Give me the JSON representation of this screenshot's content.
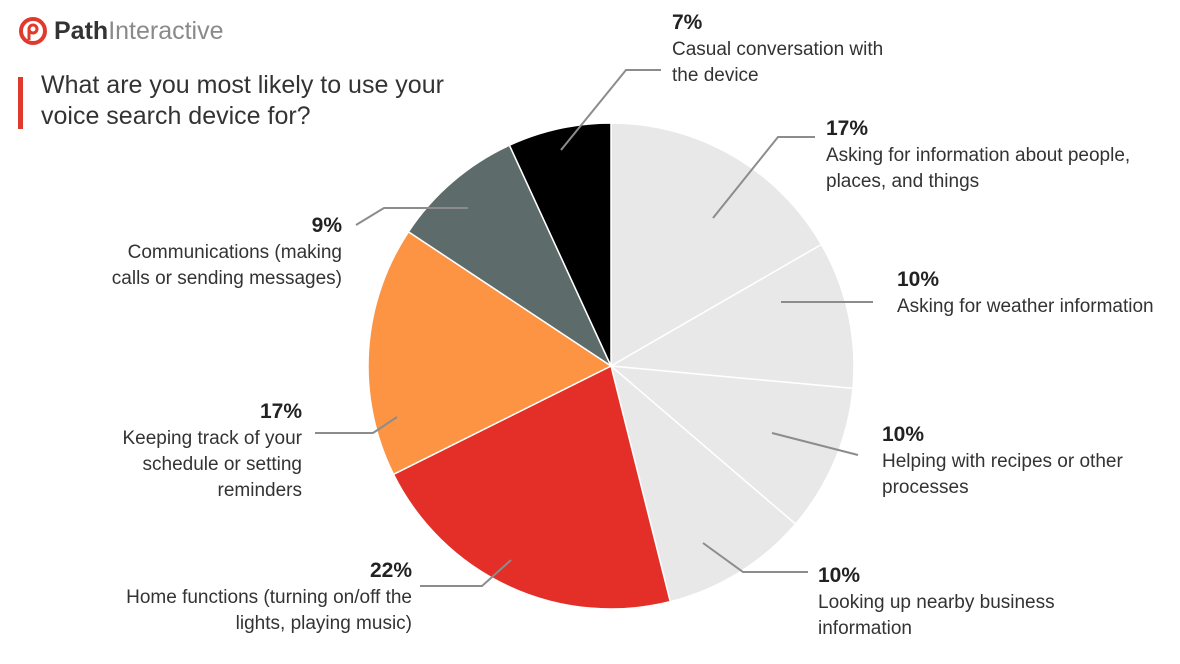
{
  "brand": {
    "name_bold": "Path",
    "name_light": "Interactive",
    "color": "#e03a2e",
    "icon": "path-logo-icon"
  },
  "title": "What are you most likely to use your voice search device for?",
  "chart_data": {
    "type": "pie",
    "title": "What are you most likely to use your voice search device for?",
    "start_angle_deg": 0,
    "direction": "clockwise",
    "slices": [
      {
        "label": "Asking for information about people, places, and things",
        "value": 17,
        "pct_text": "17%",
        "color": "#e8e8e8"
      },
      {
        "label": "Asking for weather information",
        "value": 10,
        "pct_text": "10%",
        "color": "#e8e8e8"
      },
      {
        "label": "Helping with recipes or other processes",
        "value": 10,
        "pct_text": "10%",
        "color": "#e8e8e8"
      },
      {
        "label": "Looking up nearby business information",
        "value": 10,
        "pct_text": "10%",
        "color": "#e8e8e8"
      },
      {
        "label": "Home functions (turning on/off the lights, playing music)",
        "value": 22,
        "pct_text": "22%",
        "color": "#e32f27"
      },
      {
        "label": "Keeping track of your schedule or setting reminders",
        "value": 17,
        "pct_text": "17%",
        "color": "#fc9444"
      },
      {
        "label": "Communications (making calls or sending messages)",
        "value": 9,
        "pct_text": "9%",
        "color": "#5e6b6b"
      },
      {
        "label": "Casual conversation with the device",
        "value": 7,
        "pct_text": "7%",
        "color": "#000000"
      }
    ]
  }
}
